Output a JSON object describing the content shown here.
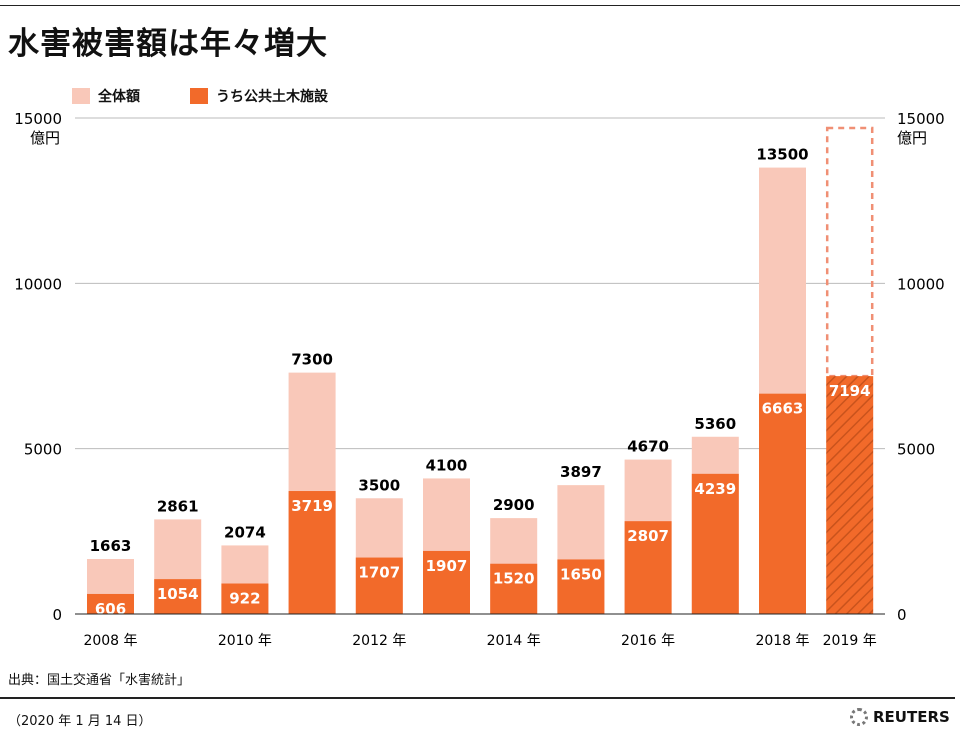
{
  "title": "水害被害額は年々増大",
  "legend": [
    {
      "label": "全体額",
      "color": "#f9c8b9"
    },
    {
      "label": "うち公共土木施設",
      "color": "#f26a2a"
    }
  ],
  "chart_data": {
    "type": "bar",
    "stacked": "overlay",
    "categories": [
      "2008",
      "2009",
      "2010",
      "2011",
      "2012",
      "2013",
      "2014",
      "2015",
      "2016",
      "2017",
      "2018",
      "2019"
    ],
    "x_tick_labels": {
      "2008": "2008 年",
      "2010": "2010 年",
      "2012": "2012 年",
      "2014": "2014 年",
      "2016": "2016 年",
      "2018": "2018 年",
      "2019": "2019 年"
    },
    "series": [
      {
        "name": "全体額",
        "values": [
          1663,
          2861,
          2074,
          7300,
          3500,
          4100,
          2900,
          3897,
          4670,
          5360,
          13500,
          null
        ],
        "color": "#f9c8b9"
      },
      {
        "name": "うち公共土木施設",
        "values": [
          606,
          1054,
          922,
          3719,
          1707,
          1907,
          1520,
          1650,
          2807,
          4239,
          6663,
          7194
        ],
        "color": "#f26a2a"
      }
    ],
    "y_unit": "億円",
    "ylim": [
      0,
      15000
    ],
    "y_ticks": [
      0,
      5000,
      10000,
      15000
    ],
    "grid": true,
    "axes_sides": "left and right",
    "note_2019": "hatched bar with dashed outline (total not shown)"
  },
  "source": "出典：国土交通省「水害統計」",
  "date": "（2020 年 1 月 14 日）",
  "logo": "REUTERS"
}
